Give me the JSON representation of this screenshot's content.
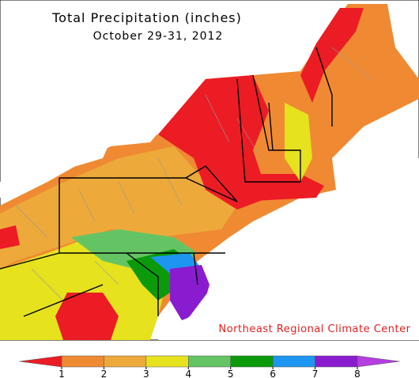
{
  "title": "Total Precipitation (inches)",
  "subtitle": "October 29-31, 2012",
  "credit": "Northeast Regional Climate Center",
  "colorbar": {
    "colors": [
      "#ec1c24",
      "#ef8a32",
      "#eda93a",
      "#e6e21e",
      "#64c464",
      "#0a9a0a",
      "#1c96f0",
      "#8a1cd0",
      "#b43ee0"
    ],
    "ticks": [
      1,
      2,
      3,
      4,
      5,
      6,
      7,
      8
    ]
  }
}
